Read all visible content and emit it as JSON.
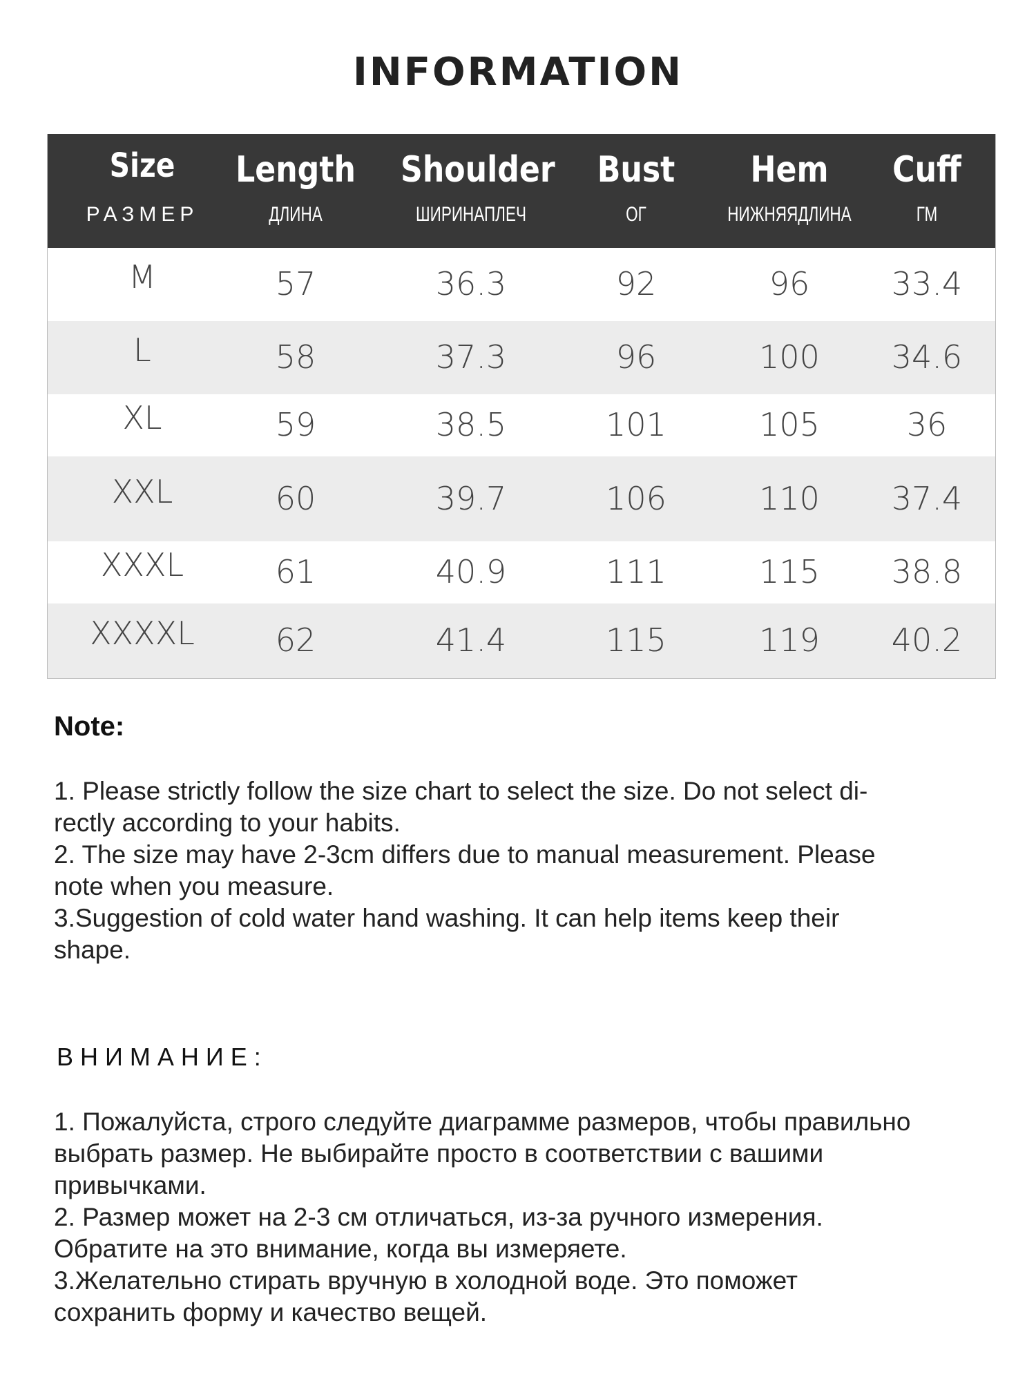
{
  "title": "INFORMATION",
  "table": {
    "headers": [
      {
        "en": "Size",
        "ru": "РАЗМЕР"
      },
      {
        "en": "Length",
        "ru": "ДЛИНА"
      },
      {
        "en": "Shoulder",
        "ru": "ШИРИНАПЛЕЧ"
      },
      {
        "en": "Bust",
        "ru": "ОГ"
      },
      {
        "en": "Hem",
        "ru": "НИЖНЯЯДЛИНА"
      },
      {
        "en": "Cuff",
        "ru": "ГМ"
      }
    ],
    "rows": [
      [
        "M",
        "57",
        "36.3",
        "92",
        "96",
        "33.4"
      ],
      [
        "L",
        "58",
        "37.3",
        "96",
        "100",
        "34.6"
      ],
      [
        "XL",
        "59",
        "38.5",
        "101",
        "105",
        "36"
      ],
      [
        "XXL",
        "60",
        "39.7",
        "106",
        "110",
        "37.4"
      ],
      [
        "XXXL",
        "61",
        "40.9",
        "111",
        "115",
        "38.8"
      ],
      [
        "XXXXL",
        "62",
        "41.4",
        "115",
        "119",
        "40.2"
      ]
    ],
    "header_bg": "#383838",
    "alt_row_bg": "#ececec"
  },
  "note": {
    "heading": "Note:",
    "lines": [
      "1. Please strictly follow the size chart  to select the size. Do not select di-",
      "rectly according to your habits.",
      "2. The size may have 2-3cm differs due to manual measurement. Please",
      "note when you measure.",
      "3.Suggestion of cold water hand washing. It can help items keep their",
      "shape."
    ]
  },
  "note_ru": {
    "heading": "ВНИМАНИЕ:",
    "lines": [
      "1. Пожалуйста, строго следуйте диаграмме размеров, чтобы правильно",
      "выбрать размер. Не выбирайте просто в соответствии с вашими",
      "привычками.",
      "2. Размер может на 2-3 см отличаться, из-за ручного измерения.",
      "Обратите на это внимание, когда вы измеряете.",
      "3.Желательно стирать вручную в холодной воде. Это поможет",
      "сохранить форму и качество вещей."
    ]
  }
}
